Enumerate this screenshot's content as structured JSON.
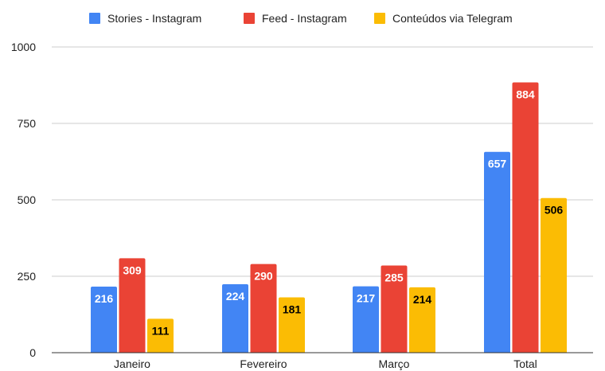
{
  "chart_data": {
    "type": "bar",
    "categories": [
      "Janeiro",
      "Fevereiro",
      "Março",
      "Total"
    ],
    "series": [
      {
        "name": "Stories - Instagram",
        "color": "#4285f4",
        "label_color": "#ffffff",
        "values": [
          216,
          224,
          217,
          657
        ]
      },
      {
        "name": "Feed - Instagram",
        "color": "#ea4335",
        "label_color": "#ffffff",
        "values": [
          309,
          290,
          285,
          884
        ]
      },
      {
        "name": "Conteúdos via Telegram",
        "color": "#fbbc04",
        "label_color": "#000000",
        "values": [
          111,
          181,
          214,
          506
        ]
      }
    ],
    "ylim": [
      0,
      1000
    ],
    "yticks": [
      0,
      250,
      500,
      750,
      1000
    ],
    "grid": true,
    "legend_position": "top"
  }
}
